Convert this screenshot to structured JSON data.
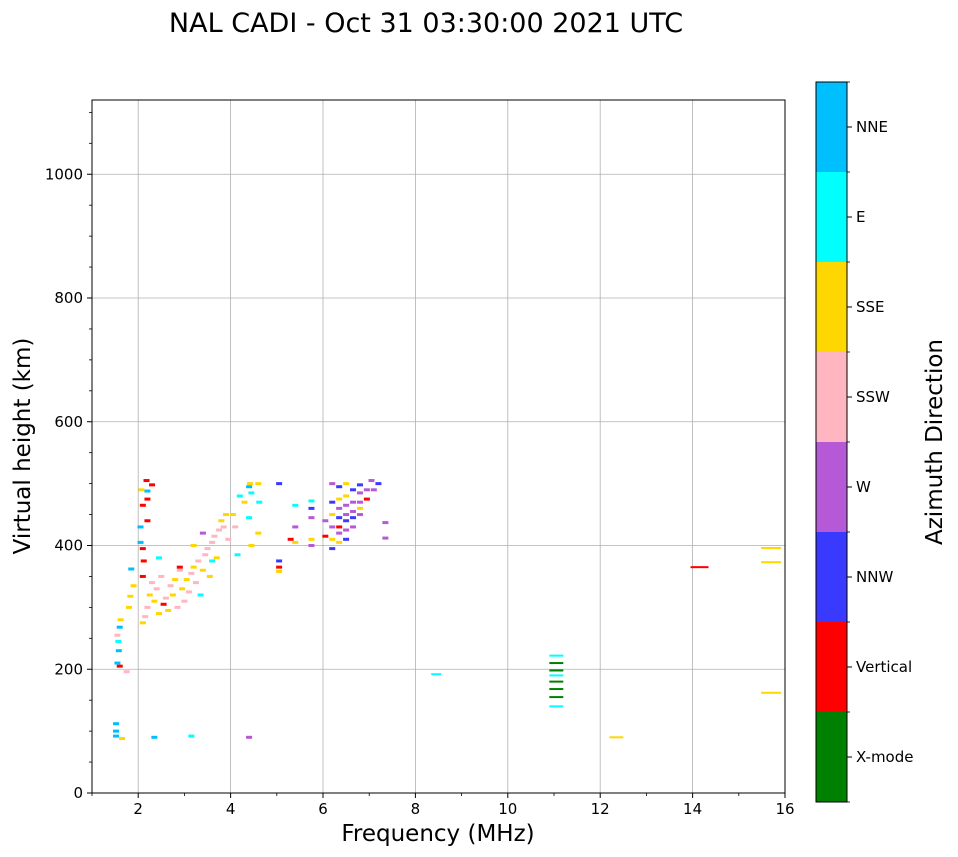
{
  "chart_data": {
    "type": "scatter",
    "title": "NAL CADI - Oct 31 03:30:00 2021 UTC",
    "xlabel": "Frequency (MHz)",
    "ylabel": "Virtual height (km)",
    "xlim": [
      1,
      16
    ],
    "ylim": [
      0,
      1120
    ],
    "x_ticks": [
      "2",
      "4",
      "6",
      "8",
      "10",
      "12",
      "14",
      "16"
    ],
    "x_tick_values": [
      2,
      4,
      6,
      8,
      10,
      12,
      14,
      16
    ],
    "y_ticks": [
      "0",
      "200",
      "400",
      "600",
      "800",
      "1000"
    ],
    "y_tick_values": [
      0,
      200,
      400,
      600,
      800,
      1000
    ],
    "grid": true,
    "colorbar": {
      "label": "Azimuth Direction",
      "categories": [
        {
          "name": "X-mode",
          "color": "#008000"
        },
        {
          "name": "Vertical",
          "color": "#ff0000"
        },
        {
          "name": "NNW",
          "color": "#3a3aff"
        },
        {
          "name": "W",
          "color": "#b659d6"
        },
        {
          "name": "SSW",
          "color": "#ffb6c1"
        },
        {
          "name": "SSE",
          "color": "#ffd700"
        },
        {
          "name": "E",
          "color": "#00ffff"
        },
        {
          "name": "NNE",
          "color": "#00bfff"
        }
      ]
    },
    "points": [
      [
        1.52,
        112,
        "NNE"
      ],
      [
        1.52,
        100,
        "NNE"
      ],
      [
        1.52,
        92,
        "NNE"
      ],
      [
        1.55,
        210,
        "NNE"
      ],
      [
        1.58,
        230,
        "NNE"
      ],
      [
        1.6,
        268,
        "NNE"
      ],
      [
        1.57,
        245,
        "E"
      ],
      [
        1.62,
        280,
        "SSE"
      ],
      [
        1.55,
        255,
        "SSW"
      ],
      [
        1.6,
        205,
        "Vertical"
      ],
      [
        1.65,
        88,
        "SSE"
      ],
      [
        1.75,
        196,
        "SSW"
      ],
      [
        1.8,
        300,
        "SSE"
      ],
      [
        1.83,
        318,
        "SSE"
      ],
      [
        1.85,
        362,
        "NNE"
      ],
      [
        1.9,
        335,
        "SSE"
      ],
      [
        2.05,
        405,
        "NNE"
      ],
      [
        2.05,
        430,
        "NNE"
      ],
      [
        2.07,
        490,
        "SSE"
      ],
      [
        2.1,
        465,
        "Vertical"
      ],
      [
        2.1,
        395,
        "Vertical"
      ],
      [
        2.12,
        375,
        "Vertical"
      ],
      [
        2.1,
        350,
        "Vertical"
      ],
      [
        2.18,
        505,
        "Vertical"
      ],
      [
        2.2,
        488,
        "NNE"
      ],
      [
        2.2,
        475,
        "Vertical"
      ],
      [
        2.2,
        440,
        "Vertical"
      ],
      [
        2.3,
        498,
        "Vertical"
      ],
      [
        2.35,
        90,
        "NNE"
      ],
      [
        2.1,
        275,
        "SSE"
      ],
      [
        2.15,
        285,
        "SSW"
      ],
      [
        2.2,
        300,
        "SSW"
      ],
      [
        2.25,
        320,
        "SSE"
      ],
      [
        2.3,
        340,
        "SSW"
      ],
      [
        2.35,
        310,
        "SSE"
      ],
      [
        2.4,
        330,
        "SSW"
      ],
      [
        2.45,
        290,
        "SSE"
      ],
      [
        2.5,
        350,
        "SSW"
      ],
      [
        2.55,
        305,
        "Vertical"
      ],
      [
        2.6,
        315,
        "SSW"
      ],
      [
        2.65,
        295,
        "SSE"
      ],
      [
        2.7,
        335,
        "SSW"
      ],
      [
        2.75,
        320,
        "SSE"
      ],
      [
        2.8,
        345,
        "SSE"
      ],
      [
        2.85,
        300,
        "SSW"
      ],
      [
        2.9,
        360,
        "SSW"
      ],
      [
        2.95,
        330,
        "SSE"
      ],
      [
        3.0,
        310,
        "SSW"
      ],
      [
        3.05,
        345,
        "SSE"
      ],
      [
        3.1,
        325,
        "SSW"
      ],
      [
        3.15,
        355,
        "SSW"
      ],
      [
        3.2,
        365,
        "SSE"
      ],
      [
        3.25,
        340,
        "SSW"
      ],
      [
        3.3,
        375,
        "SSW"
      ],
      [
        3.35,
        320,
        "E"
      ],
      [
        3.4,
        360,
        "SSE"
      ],
      [
        3.45,
        385,
        "SSW"
      ],
      [
        3.5,
        395,
        "SSW"
      ],
      [
        3.55,
        350,
        "SSE"
      ],
      [
        3.6,
        405,
        "SSW"
      ],
      [
        3.65,
        415,
        "SSW"
      ],
      [
        3.7,
        380,
        "SSE"
      ],
      [
        3.75,
        425,
        "SSW"
      ],
      [
        3.8,
        440,
        "SSE"
      ],
      [
        3.85,
        430,
        "SSW"
      ],
      [
        3.9,
        450,
        "SSE"
      ],
      [
        3.95,
        410,
        "SSW"
      ],
      [
        2.45,
        380,
        "E"
      ],
      [
        2.9,
        365,
        "Vertical"
      ],
      [
        3.15,
        92,
        "E"
      ],
      [
        3.2,
        400,
        "SSE"
      ],
      [
        3.4,
        420,
        "W"
      ],
      [
        3.6,
        375,
        "E"
      ],
      [
        4.05,
        450,
        "SSE"
      ],
      [
        4.1,
        430,
        "SSW"
      ],
      [
        4.15,
        385,
        "E"
      ],
      [
        4.2,
        480,
        "E"
      ],
      [
        4.3,
        470,
        "SSE"
      ],
      [
        4.4,
        495,
        "NNE"
      ],
      [
        4.42,
        500,
        "SSE"
      ],
      [
        4.45,
        485,
        "E"
      ],
      [
        4.4,
        445,
        "E"
      ],
      [
        4.45,
        400,
        "SSE"
      ],
      [
        4.4,
        90,
        "W"
      ],
      [
        4.6,
        420,
        "SSE"
      ],
      [
        4.62,
        470,
        "E"
      ],
      [
        4.6,
        500,
        "SSE"
      ],
      [
        5.05,
        500,
        "NNW"
      ],
      [
        5.05,
        375,
        "NNW"
      ],
      [
        5.05,
        358,
        "SSE"
      ],
      [
        5.05,
        365,
        "Vertical"
      ],
      [
        5.3,
        410,
        "Vertical"
      ],
      [
        5.4,
        430,
        "W"
      ],
      [
        5.4,
        405,
        "SSE"
      ],
      [
        5.4,
        465,
        "E"
      ],
      [
        5.75,
        472,
        "E"
      ],
      [
        5.75,
        460,
        "NNW"
      ],
      [
        5.75,
        445,
        "W"
      ],
      [
        5.75,
        410,
        "SSE"
      ],
      [
        5.75,
        400,
        "W"
      ],
      [
        6.05,
        440,
        "W"
      ],
      [
        6.05,
        415,
        "Vertical"
      ],
      [
        6.2,
        500,
        "W"
      ],
      [
        6.2,
        470,
        "NNW"
      ],
      [
        6.2,
        450,
        "SSE"
      ],
      [
        6.2,
        430,
        "W"
      ],
      [
        6.2,
        410,
        "SSE"
      ],
      [
        6.2,
        395,
        "NNW"
      ],
      [
        6.35,
        495,
        "NNW"
      ],
      [
        6.35,
        475,
        "SSE"
      ],
      [
        6.35,
        460,
        "W"
      ],
      [
        6.35,
        445,
        "NNW"
      ],
      [
        6.35,
        430,
        "Vertical"
      ],
      [
        6.35,
        420,
        "W"
      ],
      [
        6.35,
        405,
        "SSE"
      ],
      [
        6.5,
        500,
        "SSE"
      ],
      [
        6.5,
        480,
        "SSE"
      ],
      [
        6.5,
        465,
        "W"
      ],
      [
        6.5,
        450,
        "W"
      ],
      [
        6.5,
        440,
        "NNW"
      ],
      [
        6.5,
        425,
        "W"
      ],
      [
        6.5,
        410,
        "NNW"
      ],
      [
        6.65,
        490,
        "NNW"
      ],
      [
        6.65,
        470,
        "W"
      ],
      [
        6.65,
        455,
        "W"
      ],
      [
        6.65,
        445,
        "NNW"
      ],
      [
        6.65,
        430,
        "W"
      ],
      [
        6.8,
        498,
        "NNW"
      ],
      [
        6.8,
        485,
        "W"
      ],
      [
        6.8,
        470,
        "W"
      ],
      [
        6.8,
        460,
        "SSE"
      ],
      [
        6.8,
        450,
        "W"
      ],
      [
        6.95,
        490,
        "W"
      ],
      [
        6.95,
        475,
        "Vertical"
      ],
      [
        7.05,
        505,
        "W"
      ],
      [
        7.1,
        490,
        "W"
      ],
      [
        7.2,
        500,
        "NNW"
      ],
      [
        7.35,
        437,
        "W"
      ],
      [
        7.35,
        412,
        "W"
      ],
      [
        8.45,
        192,
        "E"
      ],
      [
        11.05,
        222,
        "E"
      ],
      [
        11.05,
        210,
        "X-mode"
      ],
      [
        11.05,
        198,
        "X-mode"
      ],
      [
        11.05,
        190,
        "E"
      ],
      [
        11.05,
        180,
        "X-mode"
      ],
      [
        11.05,
        168,
        "X-mode"
      ],
      [
        11.05,
        155,
        "X-mode"
      ],
      [
        11.05,
        140,
        "E"
      ],
      [
        12.35,
        90,
        "SSE"
      ],
      [
        14.15,
        365,
        "Vertical"
      ],
      [
        15.7,
        396,
        "SSE"
      ],
      [
        15.7,
        373,
        "SSE"
      ],
      [
        15.7,
        162,
        "SSE"
      ]
    ]
  }
}
